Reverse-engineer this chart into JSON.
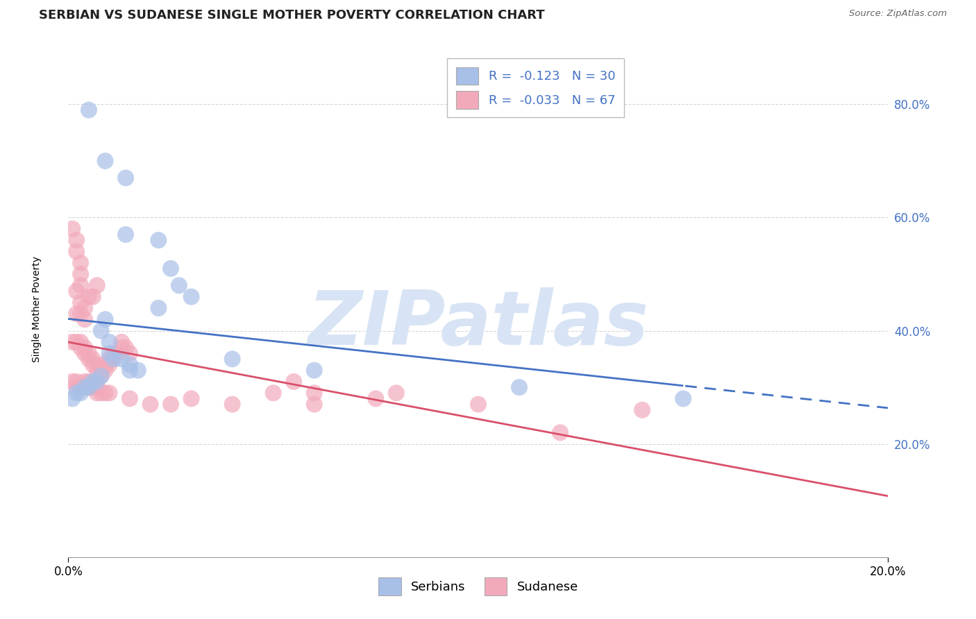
{
  "title": "SERBIAN VS SUDANESE SINGLE MOTHER POVERTY CORRELATION CHART",
  "source": "Source: ZipAtlas.com",
  "ylabel": "Single Mother Poverty",
  "xlim": [
    0.0,
    0.2
  ],
  "ylim": [
    0.0,
    0.875
  ],
  "yticks": [
    0.2,
    0.4,
    0.6,
    0.8
  ],
  "ytick_labels": [
    "20.0%",
    "40.0%",
    "60.0%",
    "80.0%"
  ],
  "legend_r1": "R =  -0.123   N = 30",
  "legend_r2": "R =  -0.033   N = 67",
  "serbian_color": "#A8C0E8",
  "sudanese_color": "#F2AABB",
  "reg_serbian_color": "#4472C4",
  "reg_sudanese_color": "#D94F6A",
  "watermark": "ZIPatlas",
  "watermark_color": "#D8E4F5",
  "serbian_points": [
    [
      0.005,
      0.79
    ],
    [
      0.009,
      0.7
    ],
    [
      0.014,
      0.67
    ],
    [
      0.022,
      0.56
    ],
    [
      0.014,
      0.57
    ],
    [
      0.025,
      0.51
    ],
    [
      0.027,
      0.48
    ],
    [
      0.03,
      0.46
    ],
    [
      0.022,
      0.44
    ],
    [
      0.009,
      0.42
    ],
    [
      0.008,
      0.4
    ],
    [
      0.01,
      0.38
    ],
    [
      0.01,
      0.36
    ],
    [
      0.011,
      0.35
    ],
    [
      0.013,
      0.35
    ],
    [
      0.015,
      0.34
    ],
    [
      0.015,
      0.33
    ],
    [
      0.017,
      0.33
    ],
    [
      0.008,
      0.32
    ],
    [
      0.007,
      0.31
    ],
    [
      0.006,
      0.31
    ],
    [
      0.005,
      0.3
    ],
    [
      0.004,
      0.3
    ],
    [
      0.003,
      0.29
    ],
    [
      0.002,
      0.29
    ],
    [
      0.001,
      0.28
    ],
    [
      0.04,
      0.35
    ],
    [
      0.06,
      0.33
    ],
    [
      0.11,
      0.3
    ],
    [
      0.15,
      0.28
    ]
  ],
  "sudanese_points": [
    [
      0.001,
      0.58
    ],
    [
      0.002,
      0.56
    ],
    [
      0.002,
      0.54
    ],
    [
      0.003,
      0.52
    ],
    [
      0.003,
      0.5
    ],
    [
      0.003,
      0.48
    ],
    [
      0.002,
      0.47
    ],
    [
      0.003,
      0.45
    ],
    [
      0.002,
      0.43
    ],
    [
      0.003,
      0.43
    ],
    [
      0.004,
      0.42
    ],
    [
      0.004,
      0.44
    ],
    [
      0.005,
      0.46
    ],
    [
      0.006,
      0.46
    ],
    [
      0.007,
      0.48
    ],
    [
      0.001,
      0.38
    ],
    [
      0.002,
      0.38
    ],
    [
      0.003,
      0.38
    ],
    [
      0.003,
      0.37
    ],
    [
      0.004,
      0.37
    ],
    [
      0.004,
      0.36
    ],
    [
      0.005,
      0.36
    ],
    [
      0.005,
      0.35
    ],
    [
      0.006,
      0.35
    ],
    [
      0.006,
      0.34
    ],
    [
      0.007,
      0.34
    ],
    [
      0.007,
      0.33
    ],
    [
      0.008,
      0.33
    ],
    [
      0.008,
      0.32
    ],
    [
      0.009,
      0.33
    ],
    [
      0.009,
      0.34
    ],
    [
      0.01,
      0.34
    ],
    [
      0.01,
      0.35
    ],
    [
      0.011,
      0.35
    ],
    [
      0.011,
      0.36
    ],
    [
      0.012,
      0.36
    ],
    [
      0.013,
      0.37
    ],
    [
      0.013,
      0.38
    ],
    [
      0.014,
      0.37
    ],
    [
      0.015,
      0.36
    ],
    [
      0.001,
      0.31
    ],
    [
      0.002,
      0.31
    ],
    [
      0.002,
      0.3
    ],
    [
      0.003,
      0.3
    ],
    [
      0.004,
      0.31
    ],
    [
      0.005,
      0.31
    ],
    [
      0.005,
      0.3
    ],
    [
      0.006,
      0.3
    ],
    [
      0.007,
      0.3
    ],
    [
      0.007,
      0.29
    ],
    [
      0.008,
      0.29
    ],
    [
      0.009,
      0.29
    ],
    [
      0.01,
      0.29
    ],
    [
      0.015,
      0.28
    ],
    [
      0.02,
      0.27
    ],
    [
      0.025,
      0.27
    ],
    [
      0.03,
      0.28
    ],
    [
      0.04,
      0.27
    ],
    [
      0.05,
      0.29
    ],
    [
      0.055,
      0.31
    ],
    [
      0.06,
      0.29
    ],
    [
      0.06,
      0.27
    ],
    [
      0.075,
      0.28
    ],
    [
      0.08,
      0.29
    ],
    [
      0.1,
      0.27
    ],
    [
      0.12,
      0.22
    ],
    [
      0.14,
      0.26
    ]
  ],
  "background_color": "#FFFFFF",
  "grid_color": "#CCCCCC",
  "title_fontsize": 13,
  "axis_label_fontsize": 10,
  "tick_fontsize": 12
}
